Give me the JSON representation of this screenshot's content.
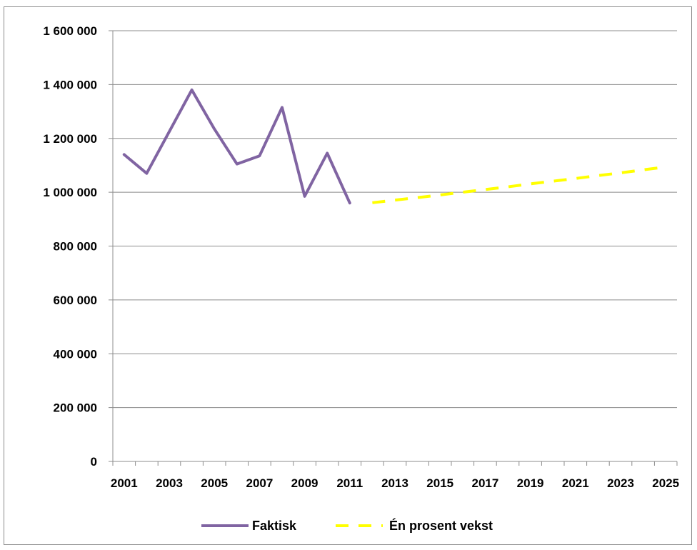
{
  "chart_data": {
    "type": "line",
    "title": "",
    "xlabel": "",
    "ylabel": "",
    "ylim": [
      0,
      1600000
    ],
    "yticks": [
      0,
      200000,
      400000,
      600000,
      800000,
      1000000,
      1200000,
      1400000,
      1600000
    ],
    "ytick_labels": [
      "0",
      "200 000",
      "400 000",
      "600 000",
      "800 000",
      "1 000 000",
      "1 200 000",
      "1 400 000",
      "1 600 000"
    ],
    "xlim": [
      2001,
      2025
    ],
    "xtick_labels": [
      "2001",
      "2003",
      "2005",
      "2007",
      "2009",
      "2011",
      "2013",
      "2015",
      "2017",
      "2019",
      "2021",
      "2023",
      "2025"
    ],
    "grid": "horizontal",
    "legend_position": "bottom",
    "series": [
      {
        "name": "Faktisk",
        "color": "#8064a2",
        "style": "solid",
        "x": [
          2001,
          2002,
          2003,
          2004,
          2005,
          2006,
          2007,
          2008,
          2009,
          2010,
          2011
        ],
        "values": [
          1140000,
          1070000,
          1225000,
          1380000,
          1235000,
          1105000,
          1135000,
          1315000,
          985000,
          1145000,
          960000
        ]
      },
      {
        "name": "Én prosent vekst",
        "color": "#ffff00",
        "style": "dashed",
        "x": [
          2012,
          2013,
          2014,
          2015,
          2016,
          2017,
          2018,
          2019,
          2020,
          2021,
          2022,
          2023,
          2024,
          2025
        ],
        "values": [
          961000,
          971000,
          980000,
          990000,
          1000000,
          1010000,
          1020000,
          1031000,
          1041000,
          1051000,
          1062000,
          1072000,
          1083000,
          1094000
        ]
      }
    ]
  }
}
